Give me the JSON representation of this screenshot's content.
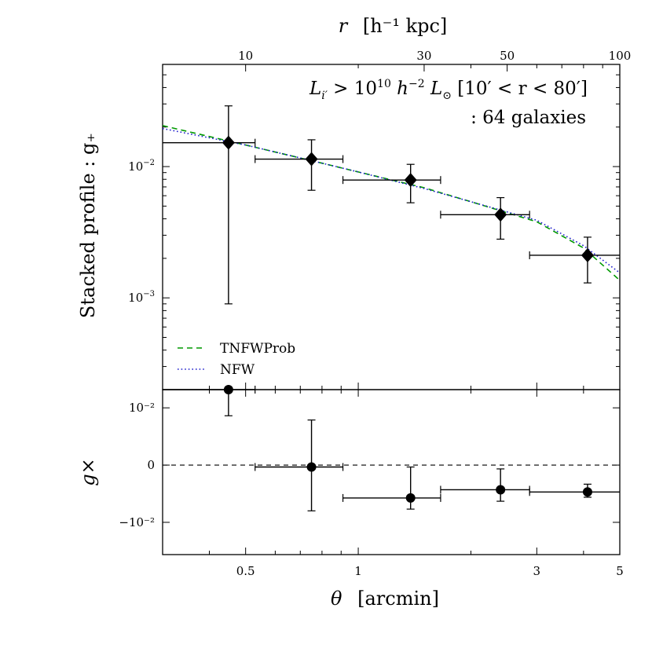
{
  "chart_data": {
    "type": "scatter",
    "title": "",
    "top_axis": {
      "label_var": "r",
      "label_unit": "[h⁻¹ kpc]",
      "scale": "log",
      "ticks": [
        10,
        30,
        50,
        100
      ],
      "tick_labels": [
        "10",
        "30",
        "50",
        "100"
      ]
    },
    "x_axis": {
      "label_var": "θ",
      "label_unit": "[arcmin]",
      "scale": "log",
      "range": [
        0.3,
        5
      ],
      "ticks": [
        0.5,
        1,
        3,
        5
      ],
      "tick_labels": [
        "0.5",
        "1",
        "3",
        "5"
      ]
    },
    "annotation": {
      "line1_parts": [
        "L",
        "i′",
        " > 10",
        "10",
        " h",
        "−2",
        " L",
        "⊙",
        "  [10′ < r < 80′]"
      ],
      "line2": ": 64 galaxies"
    },
    "upper_panel": {
      "ylabel": "Stacked profile : g₊",
      "y_scale": "log",
      "ylim": [
        0.0002,
        0.06
      ],
      "y_ticks": [
        0.01,
        0.001
      ],
      "y_tick_bases": [
        "10",
        "10"
      ],
      "y_tick_exps": [
        "−2",
        "−3"
      ],
      "points": [
        {
          "x": 0.45,
          "xlo": 0.3,
          "xhi": 0.53,
          "y": 0.0152,
          "ylo": 0.0009,
          "yhi": 0.029
        },
        {
          "x": 0.75,
          "xlo": 0.53,
          "xhi": 0.91,
          "y": 0.0114,
          "ylo": 0.0066,
          "yhi": 0.016
        },
        {
          "x": 1.38,
          "xlo": 0.91,
          "xhi": 1.66,
          "y": 0.0079,
          "ylo": 0.0053,
          "yhi": 0.0104
        },
        {
          "x": 2.4,
          "xlo": 1.66,
          "xhi": 2.87,
          "y": 0.0043,
          "ylo": 0.0028,
          "yhi": 0.0058
        },
        {
          "x": 4.1,
          "xlo": 2.87,
          "xhi": 5.0,
          "y": 0.00211,
          "ylo": 0.0013,
          "yhi": 0.0029
        }
      ],
      "series": [
        {
          "name": "TNFWProb",
          "style": "dashed",
          "color": "#009900",
          "x": [
            0.3,
            0.5,
            0.75,
            1.0,
            1.5,
            2.0,
            3.0,
            4.0,
            5.0
          ],
          "y": [
            0.0205,
            0.0146,
            0.0111,
            0.0091,
            0.0069,
            0.0054,
            0.0038,
            0.0024,
            0.00136
          ]
        },
        {
          "name": "NFW",
          "style": "dotted",
          "color": "#1f1fcc",
          "x": [
            0.3,
            0.5,
            0.75,
            1.0,
            1.5,
            2.0,
            3.0,
            4.0,
            5.0
          ],
          "y": [
            0.0195,
            0.0146,
            0.0111,
            0.0091,
            0.0068,
            0.0054,
            0.0039,
            0.0025,
            0.00155
          ]
        }
      ],
      "legend": [
        {
          "label": "TNFWProb",
          "style": "dashed",
          "color": "#009900"
        },
        {
          "label": "NFW",
          "style": "dotted",
          "color": "#1f1fcc"
        }
      ],
      "legend_position": "lower-left"
    },
    "lower_panel": {
      "ylabel": "g×",
      "y_scale": "symlog",
      "ylim": [
        -0.07,
        0.03
      ],
      "y_tick_labels": [
        "10⁻²",
        "0",
        "−10⁻²"
      ],
      "y_tick_values": [
        0.01,
        0,
        -0.01
      ],
      "reference_line": 0,
      "points": [
        {
          "x": 0.45,
          "xlo": 0.3,
          "xhi": 0.53,
          "y": 0.03,
          "ylo": 0.0062,
          "yhi": 0.03
        },
        {
          "x": 0.75,
          "xlo": 0.53,
          "xhi": 0.91,
          "y": -0.0001,
          "ylo": -0.005,
          "yhi": 0.0048
        },
        {
          "x": 1.38,
          "xlo": 0.91,
          "xhi": 1.66,
          "y": -0.0023,
          "ylo": -0.0045,
          "yhi": -0.0001
        },
        {
          "x": 2.4,
          "xlo": 1.66,
          "xhi": 2.87,
          "y": -0.0014,
          "ylo": -0.0028,
          "yhi": -0.0002
        },
        {
          "x": 4.1,
          "xlo": 2.87,
          "xhi": 5.0,
          "y": -0.0016,
          "ylo": -0.0022,
          "yhi": -0.001
        }
      ]
    }
  }
}
